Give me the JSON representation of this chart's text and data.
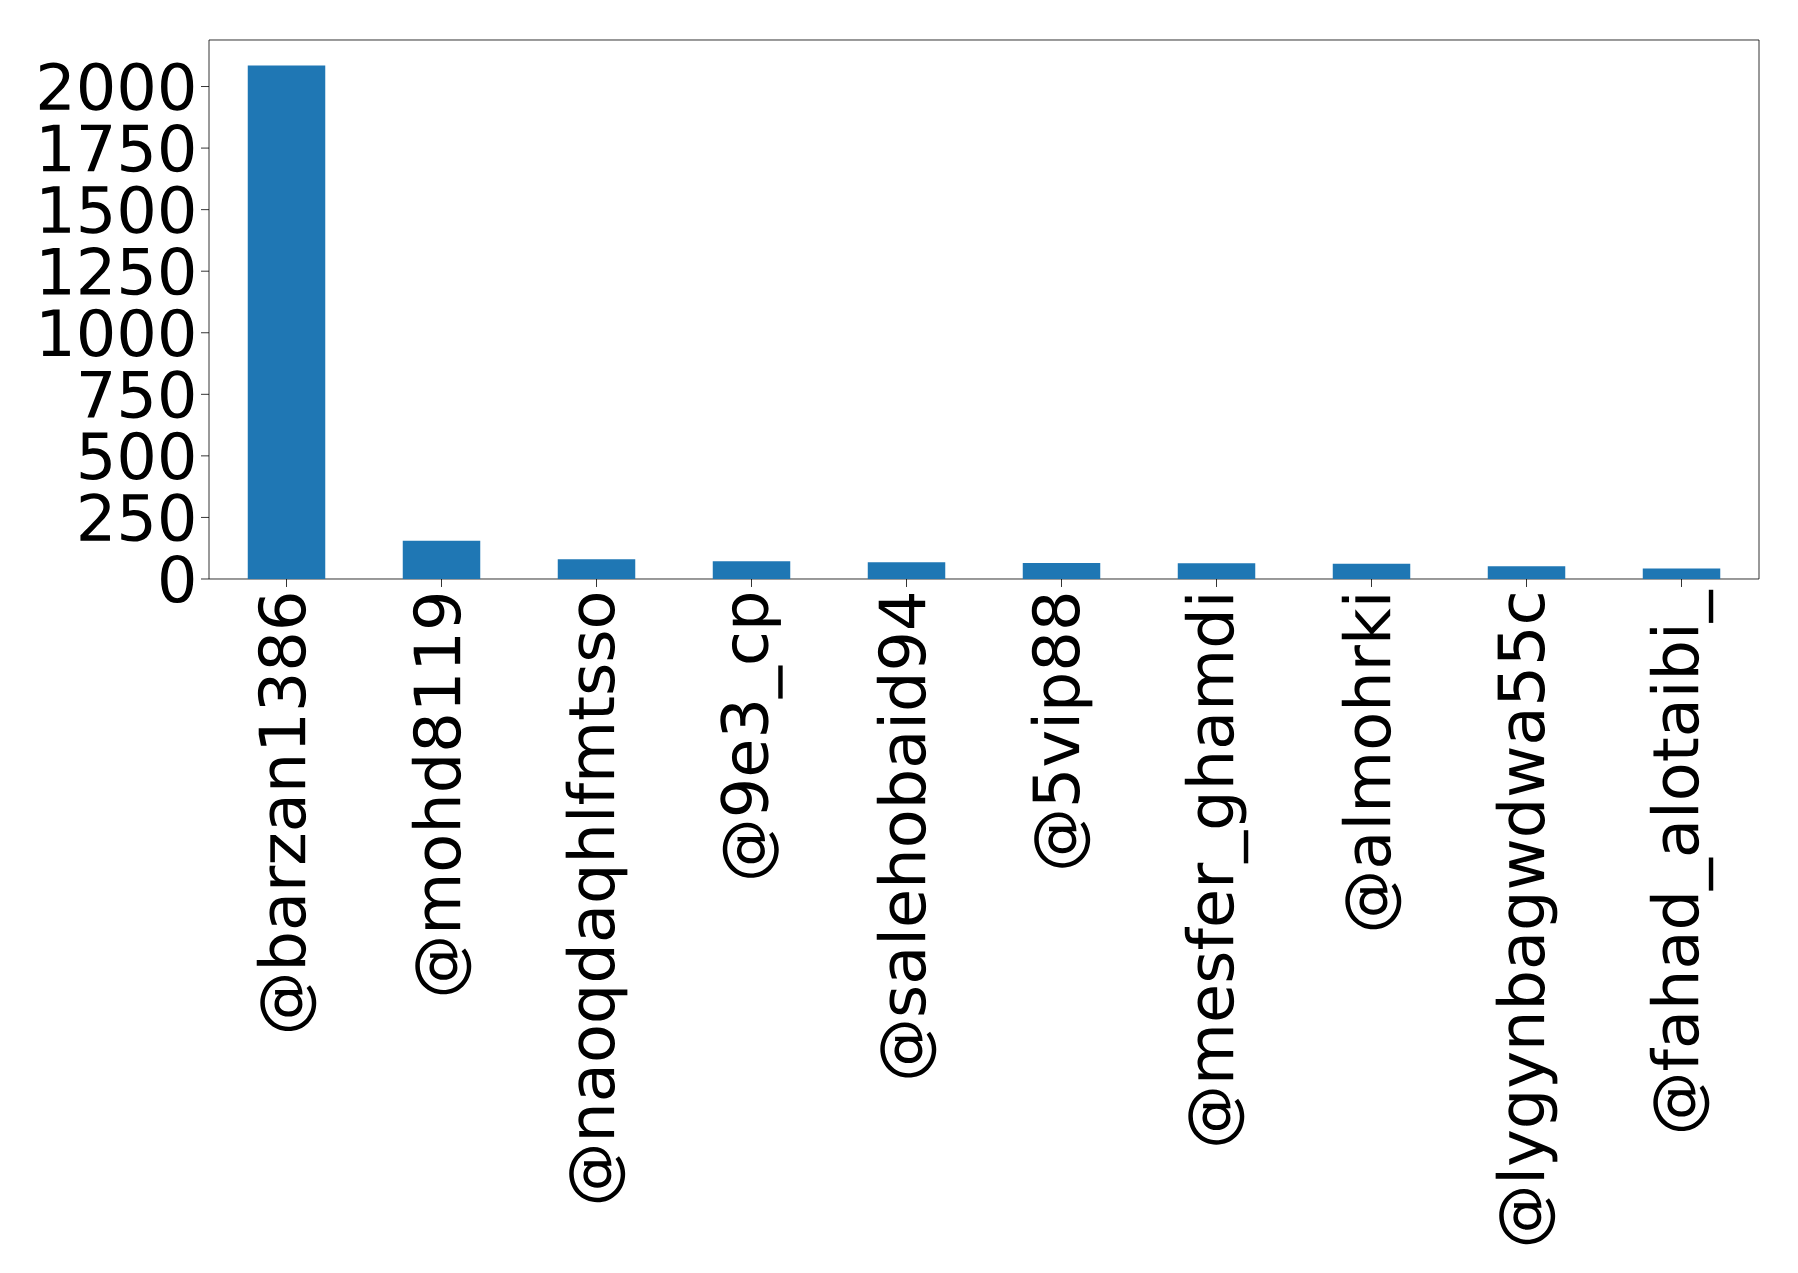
{
  "chart_data": {
    "type": "bar",
    "categories": [
      "@barzan1386",
      "@mohd8119",
      "@naoqdaqhlfmtsso",
      "@9e3_cp",
      "@salehobaid94",
      "@5vip88",
      "@mesfer_ghamdi",
      "@almohrki",
      "@lygynbagwdwa55c",
      "@fahad_alotaibi_"
    ],
    "values": [
      2085,
      155,
      80,
      72,
      68,
      65,
      64,
      62,
      52,
      43
    ],
    "color": "#1f77b4",
    "ylim": [
      0,
      2189
    ],
    "yticks": [
      0,
      250,
      500,
      750,
      1000,
      1250,
      1500,
      1750,
      2000
    ]
  }
}
